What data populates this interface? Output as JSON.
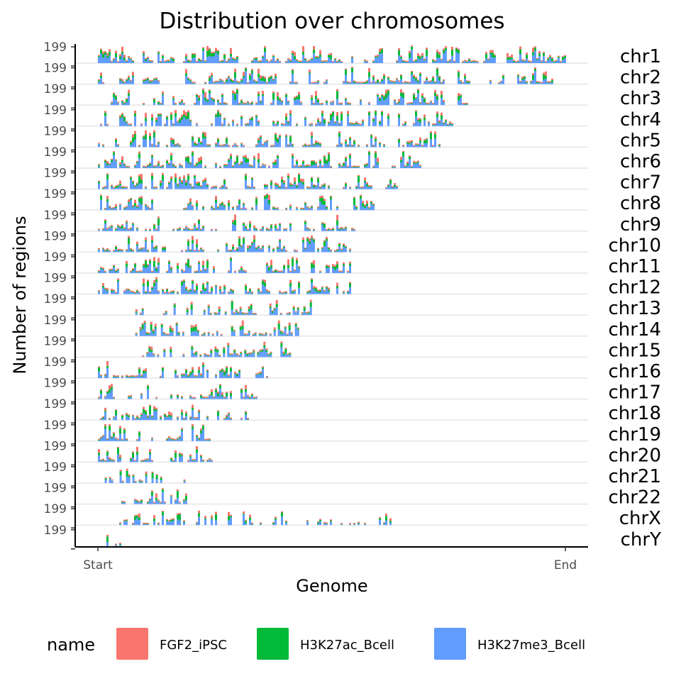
{
  "chart_data": {
    "type": "bar",
    "title": "Distribution over chromosomes",
    "xlabel": "Genome",
    "ylabel": "Number of regions",
    "x_ticks": [
      "Start",
      "End"
    ],
    "y_tick_label": "199",
    "facets": [
      "chr1",
      "chr2",
      "chr3",
      "chr4",
      "chr5",
      "chr6",
      "chr7",
      "chr8",
      "chr9",
      "chr10",
      "chr11",
      "chr12",
      "chr13",
      "chr14",
      "chr15",
      "chr16",
      "chr17",
      "chr18",
      "chr19",
      "chr20",
      "chr21",
      "chr22",
      "chrX",
      "chrY"
    ],
    "facet_extent_fraction": [
      1.0,
      0.97,
      0.79,
      0.76,
      0.73,
      0.69,
      0.64,
      0.59,
      0.55,
      0.54,
      0.54,
      0.54,
      0.46,
      0.43,
      0.41,
      0.36,
      0.34,
      0.32,
      0.24,
      0.26,
      0.19,
      0.21,
      0.63,
      0.05
    ],
    "facet_start_fraction": [
      0,
      0,
      0,
      0,
      0,
      0,
      0,
      0,
      0,
      0,
      0,
      0,
      0.08,
      0.08,
      0.09,
      0,
      0,
      0,
      0,
      0,
      0.01,
      0.05,
      0,
      0
    ],
    "facet_density": [
      1.0,
      0.95,
      0.85,
      0.75,
      0.8,
      0.9,
      0.85,
      0.7,
      0.75,
      0.85,
      0.85,
      0.85,
      0.7,
      0.7,
      0.75,
      0.9,
      0.9,
      0.65,
      1.0,
      0.9,
      0.45,
      0.8,
      0.45,
      0.1
    ],
    "series": [
      {
        "name": "FGF2_iPSC",
        "color": "#F8766D"
      },
      {
        "name": "H3K27ac_Bcell",
        "color": "#00BA38"
      },
      {
        "name": "H3K27me3_Bcell",
        "color": "#619CFF"
      }
    ],
    "legend": {
      "title": "name",
      "position": "bottom"
    },
    "grid": {
      "horizontal": true,
      "vertical": false
    }
  }
}
